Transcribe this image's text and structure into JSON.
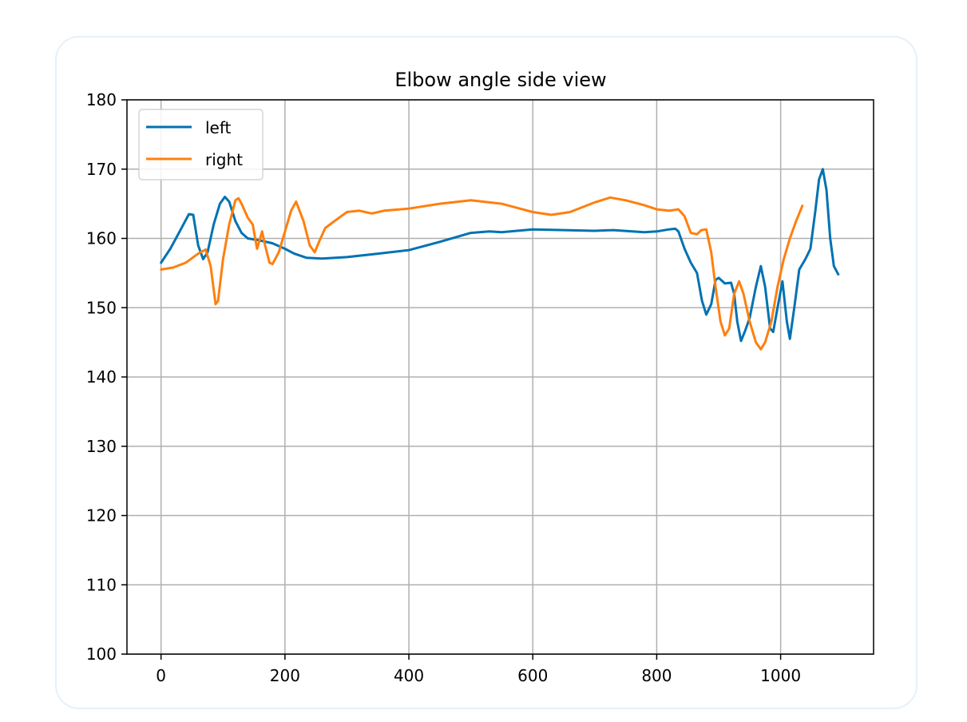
{
  "chart_data": {
    "type": "line",
    "title": "Elbow angle side view",
    "xlabel": "",
    "ylabel": "",
    "xlim": [
      -55,
      1150
    ],
    "ylim": [
      100,
      180
    ],
    "xticks": [
      0,
      200,
      400,
      600,
      800,
      1000
    ],
    "yticks": [
      100,
      110,
      120,
      130,
      140,
      150,
      160,
      170,
      180
    ],
    "grid": true,
    "legend_position": "top-left",
    "series": [
      {
        "name": "left",
        "color": "#0072b2",
        "points": [
          [
            0,
            156.5
          ],
          [
            15,
            158.5
          ],
          [
            30,
            161
          ],
          [
            45,
            163.5
          ],
          [
            52,
            163.4
          ],
          [
            60,
            159
          ],
          [
            68,
            157
          ],
          [
            75,
            158
          ],
          [
            85,
            162
          ],
          [
            95,
            165
          ],
          [
            103,
            166
          ],
          [
            110,
            165.3
          ],
          [
            120,
            162.5
          ],
          [
            130,
            160.8
          ],
          [
            140,
            160
          ],
          [
            160,
            159.7
          ],
          [
            180,
            159.3
          ],
          [
            200,
            158.5
          ],
          [
            215,
            157.8
          ],
          [
            235,
            157.2
          ],
          [
            260,
            157.1
          ],
          [
            300,
            157.3
          ],
          [
            350,
            157.8
          ],
          [
            400,
            158.3
          ],
          [
            450,
            159.5
          ],
          [
            500,
            160.8
          ],
          [
            530,
            161
          ],
          [
            550,
            160.9
          ],
          [
            600,
            161.3
          ],
          [
            650,
            161.2
          ],
          [
            700,
            161.1
          ],
          [
            730,
            161.2
          ],
          [
            780,
            160.9
          ],
          [
            800,
            161
          ],
          [
            820,
            161.3
          ],
          [
            830,
            161.4
          ],
          [
            835,
            161
          ],
          [
            845,
            158.5
          ],
          [
            855,
            156.5
          ],
          [
            865,
            155
          ],
          [
            873,
            151
          ],
          [
            880,
            149
          ],
          [
            888,
            150.5
          ],
          [
            895,
            154
          ],
          [
            900,
            154.3
          ],
          [
            910,
            153.5
          ],
          [
            920,
            153.6
          ],
          [
            925,
            152
          ],
          [
            930,
            148
          ],
          [
            936,
            145.2
          ],
          [
            942,
            146.5
          ],
          [
            950,
            148.5
          ],
          [
            960,
            153
          ],
          [
            968,
            156
          ],
          [
            975,
            153
          ],
          [
            983,
            147
          ],
          [
            988,
            146.5
          ],
          [
            995,
            150
          ],
          [
            1003,
            153.8
          ],
          [
            1010,
            148
          ],
          [
            1015,
            145.5
          ],
          [
            1022,
            150
          ],
          [
            1030,
            155.5
          ],
          [
            1040,
            157
          ],
          [
            1048,
            158.5
          ],
          [
            1056,
            164
          ],
          [
            1062,
            168.5
          ],
          [
            1068,
            170
          ],
          [
            1074,
            167
          ],
          [
            1080,
            160
          ],
          [
            1086,
            156
          ],
          [
            1093,
            154.8
          ]
        ]
      },
      {
        "name": "right",
        "color": "#ff7f0e",
        "points": [
          [
            0,
            155.5
          ],
          [
            20,
            155.8
          ],
          [
            40,
            156.5
          ],
          [
            60,
            157.8
          ],
          [
            72,
            158.4
          ],
          [
            80,
            156
          ],
          [
            88,
            150.5
          ],
          [
            92,
            151
          ],
          [
            100,
            157
          ],
          [
            110,
            162
          ],
          [
            120,
            165.5
          ],
          [
            125,
            165.8
          ],
          [
            130,
            165
          ],
          [
            140,
            163
          ],
          [
            148,
            162
          ],
          [
            155,
            158.5
          ],
          [
            160,
            160
          ],
          [
            163,
            161
          ],
          [
            168,
            159
          ],
          [
            175,
            156.5
          ],
          [
            180,
            156.3
          ],
          [
            190,
            158
          ],
          [
            200,
            161
          ],
          [
            210,
            164
          ],
          [
            218,
            165.3
          ],
          [
            230,
            162.5
          ],
          [
            240,
            159
          ],
          [
            248,
            158
          ],
          [
            255,
            159.5
          ],
          [
            265,
            161.5
          ],
          [
            280,
            162.5
          ],
          [
            300,
            163.8
          ],
          [
            320,
            164
          ],
          [
            340,
            163.6
          ],
          [
            360,
            164
          ],
          [
            400,
            164.3
          ],
          [
            450,
            165
          ],
          [
            500,
            165.5
          ],
          [
            550,
            165
          ],
          [
            600,
            163.8
          ],
          [
            630,
            163.4
          ],
          [
            660,
            163.8
          ],
          [
            700,
            165.2
          ],
          [
            725,
            165.9
          ],
          [
            750,
            165.5
          ],
          [
            780,
            164.8
          ],
          [
            800,
            164.2
          ],
          [
            820,
            164
          ],
          [
            835,
            164.2
          ],
          [
            845,
            163.2
          ],
          [
            855,
            160.8
          ],
          [
            865,
            160.6
          ],
          [
            872,
            161.2
          ],
          [
            880,
            161.3
          ],
          [
            888,
            158
          ],
          [
            895,
            153
          ],
          [
            903,
            148
          ],
          [
            910,
            146
          ],
          [
            917,
            147
          ],
          [
            925,
            152
          ],
          [
            933,
            153.8
          ],
          [
            940,
            152
          ],
          [
            950,
            148
          ],
          [
            960,
            145
          ],
          [
            968,
            144
          ],
          [
            975,
            145
          ],
          [
            985,
            148
          ],
          [
            995,
            153
          ],
          [
            1005,
            157
          ],
          [
            1015,
            160
          ],
          [
            1025,
            162.5
          ],
          [
            1035,
            164.7
          ]
        ]
      }
    ]
  }
}
